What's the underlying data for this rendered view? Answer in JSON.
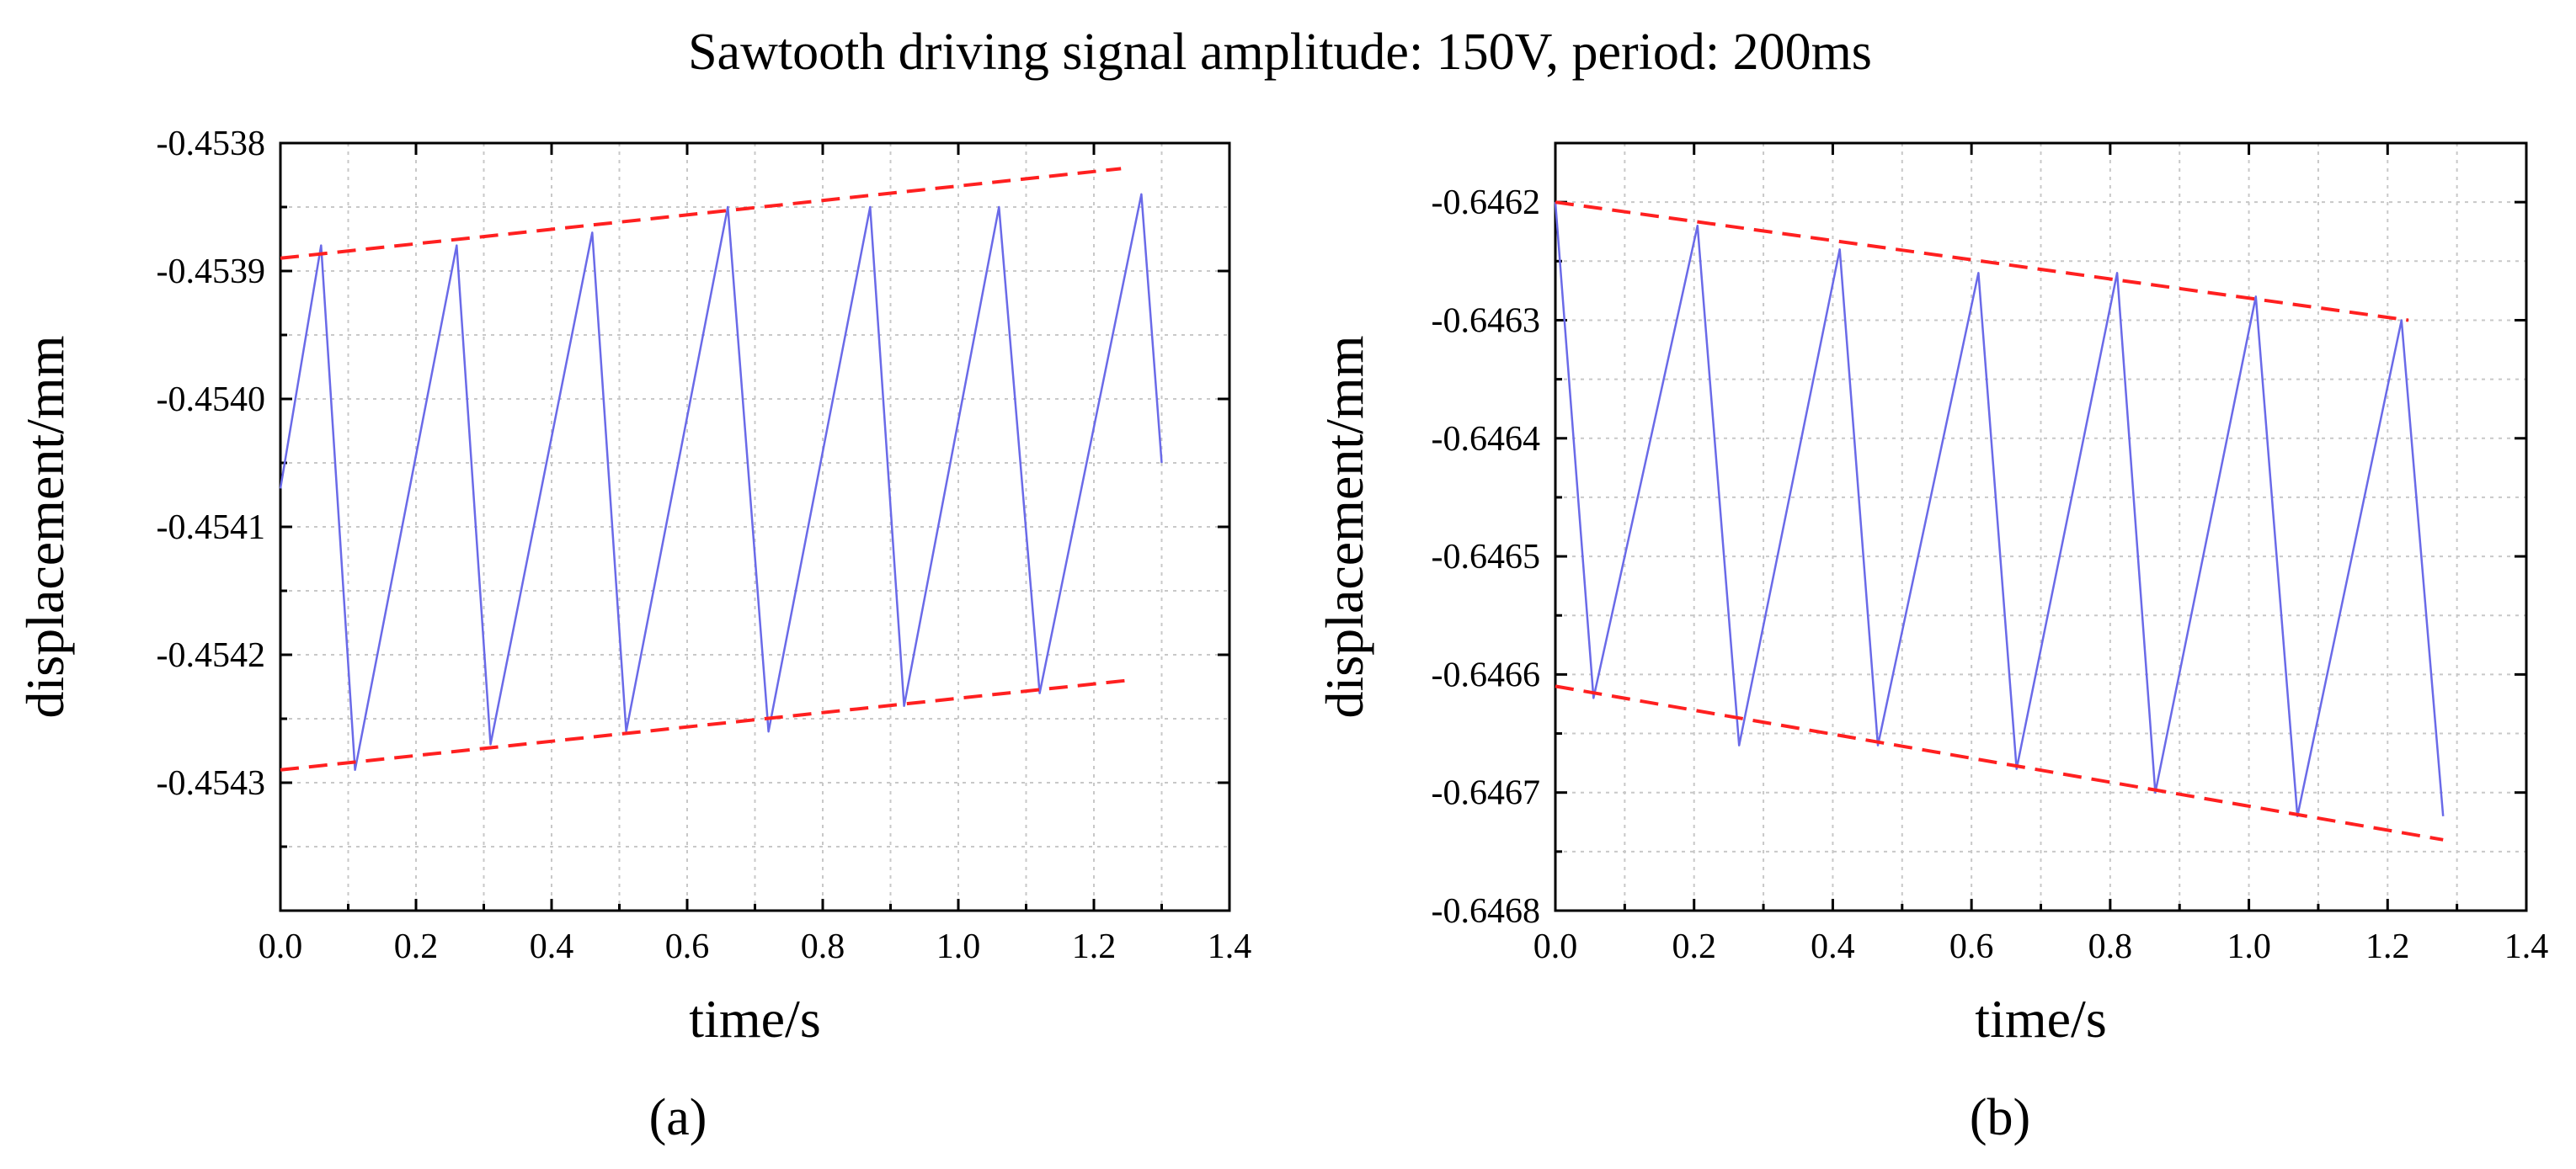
{
  "figure_title": "Sawtooth driving signal amplitude: 150V,  period: 200ms",
  "colors": {
    "signal": "#6a6ae8",
    "envelope": "#ff2020",
    "grid": "#c8c8c8",
    "axis": "#000000"
  },
  "chart_data": [
    {
      "type": "line",
      "panel_label": "(a)",
      "xlabel": "time/s",
      "ylabel": "displacement/mm",
      "xlim": [
        0.0,
        1.4
      ],
      "ylim": [
        -0.4544,
        -0.4538
      ],
      "x_ticks": [
        0.0,
        0.2,
        0.4,
        0.6,
        0.8,
        1.0,
        1.2,
        1.4
      ],
      "x_tick_labels": [
        "0.0",
        "0.2",
        "0.4",
        "0.6",
        "0.8",
        "1.0",
        "1.2",
        "1.4"
      ],
      "y_ticks": [
        -0.4538,
        -0.4539,
        -0.454,
        -0.4541,
        -0.4542,
        -0.4543
      ],
      "y_tick_labels": [
        "-0.4538",
        "-0.4539",
        "-0.4540",
        "-0.4541",
        "-0.4542",
        "-0.4543"
      ],
      "grid": true,
      "series": [
        {
          "name": "displacement",
          "style": "solid",
          "x": [
            0.0,
            0.06,
            0.11,
            0.26,
            0.31,
            0.46,
            0.51,
            0.66,
            0.72,
            0.87,
            0.92,
            1.06,
            1.12,
            1.27,
            1.3
          ],
          "y": [
            -0.45407,
            -0.45388,
            -0.45429,
            -0.45388,
            -0.45427,
            -0.45387,
            -0.45426,
            -0.45385,
            -0.45426,
            -0.45385,
            -0.45424,
            -0.45385,
            -0.45423,
            -0.45384,
            -0.45405
          ]
        },
        {
          "name": "upper envelope",
          "style": "dashed",
          "x": [
            0.0,
            1.24
          ],
          "y": [
            -0.45389,
            -0.45382
          ]
        },
        {
          "name": "lower envelope",
          "style": "dashed",
          "x": [
            0.0,
            1.25
          ],
          "y": [
            -0.45429,
            -0.45422
          ]
        }
      ]
    },
    {
      "type": "line",
      "panel_label": "(b)",
      "xlabel": "time/s",
      "ylabel": "displacement/mm",
      "xlim": [
        0.0,
        1.4
      ],
      "ylim": [
        -0.6468,
        -0.64615
      ],
      "x_ticks": [
        0.0,
        0.2,
        0.4,
        0.6,
        0.8,
        1.0,
        1.2,
        1.4
      ],
      "x_tick_labels": [
        "0.0",
        "0.2",
        "0.4",
        "0.6",
        "0.8",
        "1.0",
        "1.2",
        "1.4"
      ],
      "y_ticks": [
        -0.6462,
        -0.6463,
        -0.6464,
        -0.6465,
        -0.6466,
        -0.6467,
        -0.6468
      ],
      "y_tick_labels": [
        "-0.6462",
        "-0.6463",
        "-0.6464",
        "-0.6465",
        "-0.6466",
        "-0.6467",
        "-0.6468"
      ],
      "grid": true,
      "series": [
        {
          "name": "displacement",
          "style": "solid",
          "x": [
            0.0,
            0.055,
            0.205,
            0.265,
            0.41,
            0.465,
            0.61,
            0.665,
            0.81,
            0.865,
            1.01,
            1.07,
            1.22,
            1.28
          ],
          "y": [
            -0.6462,
            -0.64662,
            -0.64622,
            -0.64666,
            -0.64624,
            -0.64666,
            -0.64626,
            -0.64668,
            -0.64626,
            -0.6467,
            -0.64628,
            -0.64672,
            -0.6463,
            -0.64672
          ]
        },
        {
          "name": "upper envelope",
          "style": "dashed",
          "x": [
            0.0,
            1.23
          ],
          "y": [
            -0.6462,
            -0.6463
          ]
        },
        {
          "name": "lower envelope",
          "style": "dashed",
          "x": [
            0.0,
            1.28
          ],
          "y": [
            -0.64661,
            -0.64674
          ]
        }
      ]
    }
  ]
}
